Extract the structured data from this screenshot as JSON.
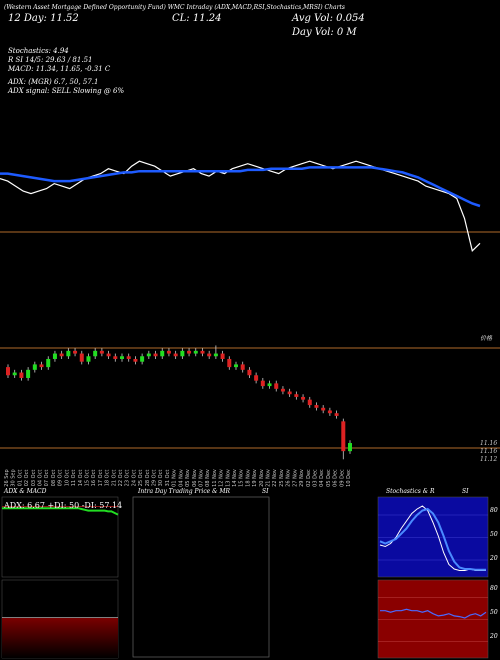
{
  "header": {
    "line1_left": "(Western Asset Mortgage Defined Opportunity Fund) WMC Intraday (ADX,MACD,RSI,Stochastics,MRSI) Charts",
    "price_left": "12 Day: 11.52",
    "price_center": "CL: 11.24",
    "avg_vol": "Avg Vol: 0.054",
    "day_vol": "Day Vol: 0 M",
    "col1": "(Western Asset Mortgage Defined Opportunity Fund) WMC",
    "stochastics": "Stochastics: 4.94",
    "rsi": "R SI 14/5: 29.63 / 81.51",
    "macd": "MACD: 11.34, 11.65, -0.31 C",
    "adx": "ADX: (MGR) 6.7, 50, 57.1",
    "adx_signal": "ADX signal: SELL Slowing @ 6%"
  },
  "price_axis": {
    "label_top": "价格",
    "label_1": "11.16",
    "label_2": "11.16",
    "label_3": "11.12"
  },
  "chart_data": [
    {
      "type": "line",
      "name": "price-panel",
      "series": [
        {
          "name": "price",
          "color": "#ffffff",
          "values": [
            11.82,
            11.8,
            11.76,
            11.72,
            11.7,
            11.72,
            11.74,
            11.78,
            11.76,
            11.74,
            11.78,
            11.82,
            11.84,
            11.86,
            11.9,
            11.88,
            11.86,
            11.92,
            11.96,
            11.94,
            11.92,
            11.88,
            11.84,
            11.86,
            11.88,
            11.9,
            11.86,
            11.84,
            11.88,
            11.86,
            11.9,
            11.92,
            11.94,
            11.92,
            11.9,
            11.88,
            11.86,
            11.9,
            11.92,
            11.94,
            11.96,
            11.94,
            11.92,
            11.9,
            11.92,
            11.94,
            11.96,
            11.94,
            11.92,
            11.9,
            11.88,
            11.86,
            11.84,
            11.82,
            11.8,
            11.76,
            11.74,
            11.72,
            11.7,
            11.66,
            11.5,
            11.24,
            11.3
          ]
        },
        {
          "name": "moving-average",
          "color": "#1e5bff",
          "values": [
            11.86,
            11.86,
            11.85,
            11.84,
            11.83,
            11.82,
            11.81,
            11.8,
            11.8,
            11.8,
            11.81,
            11.82,
            11.83,
            11.84,
            11.85,
            11.86,
            11.87,
            11.87,
            11.88,
            11.88,
            11.88,
            11.88,
            11.88,
            11.88,
            11.88,
            11.88,
            11.88,
            11.88,
            11.88,
            11.88,
            11.88,
            11.88,
            11.89,
            11.89,
            11.89,
            11.9,
            11.9,
            11.9,
            11.9,
            11.9,
            11.91,
            11.91,
            11.91,
            11.91,
            11.91,
            11.91,
            11.91,
            11.91,
            11.91,
            11.9,
            11.89,
            11.88,
            11.87,
            11.85,
            11.83,
            11.8,
            11.77,
            11.74,
            11.71,
            11.68,
            11.65,
            11.62,
            11.6
          ]
        }
      ]
    },
    {
      "type": "candlestick",
      "name": "candle-panel",
      "x_labels": [
        "26 Sep",
        "30 Sep",
        "01 Oct",
        "02 Oct",
        "03 Oct",
        "04 Oct",
        "07 Oct",
        "08 Oct",
        "09 Oct",
        "10 Oct",
        "11 Oct",
        "14 Oct",
        "15 Oct",
        "16 Oct",
        "17 Oct",
        "18 Oct",
        "21 Oct",
        "22 Oct",
        "23 Oct",
        "24 Oct",
        "25 Oct",
        "28 Oct",
        "29 Oct",
        "30 Oct",
        "31 Oct",
        "01 Nov",
        "04 Nov",
        "05 Nov",
        "06 Nov",
        "07 Nov",
        "08 Nov",
        "11 Nov",
        "12 Nov",
        "13 Nov",
        "14 Nov",
        "15 Nov",
        "18 Nov",
        "19 Nov",
        "20 Nov",
        "21 Nov",
        "22 Nov",
        "25 Nov",
        "26 Nov",
        "27 Nov",
        "29 Nov",
        "02 Dec",
        "03 Dec",
        "04 Dec",
        "05 Dec",
        "06 Dec",
        "09 Dec",
        "10 Dec"
      ],
      "candles": [
        {
          "o": 11.8,
          "c": 11.74,
          "h": 11.82,
          "l": 11.72
        },
        {
          "o": 11.74,
          "c": 11.76,
          "h": 11.78,
          "l": 11.72
        },
        {
          "o": 11.76,
          "c": 11.72,
          "h": 11.78,
          "l": 11.7
        },
        {
          "o": 11.72,
          "c": 11.78,
          "h": 11.8,
          "l": 11.7
        },
        {
          "o": 11.78,
          "c": 11.82,
          "h": 11.84,
          "l": 11.76
        },
        {
          "o": 11.82,
          "c": 11.8,
          "h": 11.84,
          "l": 11.78
        },
        {
          "o": 11.8,
          "c": 11.86,
          "h": 11.88,
          "l": 11.78
        },
        {
          "o": 11.86,
          "c": 11.9,
          "h": 11.92,
          "l": 11.84
        },
        {
          "o": 11.9,
          "c": 11.88,
          "h": 11.92,
          "l": 11.86
        },
        {
          "o": 11.88,
          "c": 11.92,
          "h": 11.94,
          "l": 11.86
        },
        {
          "o": 11.92,
          "c": 11.9,
          "h": 11.94,
          "l": 11.88
        },
        {
          "o": 11.9,
          "c": 11.84,
          "h": 11.92,
          "l": 11.82
        },
        {
          "o": 11.84,
          "c": 11.88,
          "h": 11.9,
          "l": 11.82
        },
        {
          "o": 11.88,
          "c": 11.92,
          "h": 11.94,
          "l": 11.86
        },
        {
          "o": 11.92,
          "c": 11.9,
          "h": 11.94,
          "l": 11.88
        },
        {
          "o": 11.9,
          "c": 11.88,
          "h": 11.92,
          "l": 11.86
        },
        {
          "o": 11.88,
          "c": 11.86,
          "h": 11.9,
          "l": 11.84
        },
        {
          "o": 11.86,
          "c": 11.88,
          "h": 11.9,
          "l": 11.84
        },
        {
          "o": 11.88,
          "c": 11.86,
          "h": 11.9,
          "l": 11.84
        },
        {
          "o": 11.86,
          "c": 11.84,
          "h": 11.88,
          "l": 11.82
        },
        {
          "o": 11.84,
          "c": 11.88,
          "h": 11.9,
          "l": 11.82
        },
        {
          "o": 11.88,
          "c": 11.9,
          "h": 11.92,
          "l": 11.86
        },
        {
          "o": 11.9,
          "c": 11.88,
          "h": 11.92,
          "l": 11.86
        },
        {
          "o": 11.88,
          "c": 11.92,
          "h": 11.94,
          "l": 11.86
        },
        {
          "o": 11.92,
          "c": 11.9,
          "h": 11.94,
          "l": 11.88
        },
        {
          "o": 11.9,
          "c": 11.88,
          "h": 11.92,
          "l": 11.86
        },
        {
          "o": 11.88,
          "c": 11.92,
          "h": 11.94,
          "l": 11.86
        },
        {
          "o": 11.92,
          "c": 11.9,
          "h": 11.94,
          "l": 11.88
        },
        {
          "o": 11.9,
          "c": 11.92,
          "h": 11.94,
          "l": 11.88
        },
        {
          "o": 11.92,
          "c": 11.9,
          "h": 11.94,
          "l": 11.88
        },
        {
          "o": 11.9,
          "c": 11.88,
          "h": 11.92,
          "l": 11.86
        },
        {
          "o": 11.88,
          "c": 11.9,
          "h": 11.96,
          "l": 11.86
        },
        {
          "o": 11.9,
          "c": 11.86,
          "h": 11.92,
          "l": 11.84
        },
        {
          "o": 11.86,
          "c": 11.8,
          "h": 11.88,
          "l": 11.78
        },
        {
          "o": 11.8,
          "c": 11.82,
          "h": 11.84,
          "l": 11.78
        },
        {
          "o": 11.82,
          "c": 11.78,
          "h": 11.84,
          "l": 11.76
        },
        {
          "o": 11.78,
          "c": 11.74,
          "h": 11.8,
          "l": 11.72
        },
        {
          "o": 11.74,
          "c": 11.7,
          "h": 11.76,
          "l": 11.68
        },
        {
          "o": 11.7,
          "c": 11.66,
          "h": 11.72,
          "l": 11.64
        },
        {
          "o": 11.66,
          "c": 11.68,
          "h": 11.7,
          "l": 11.64
        },
        {
          "o": 11.68,
          "c": 11.64,
          "h": 11.7,
          "l": 11.62
        },
        {
          "o": 11.64,
          "c": 11.62,
          "h": 11.66,
          "l": 11.6
        },
        {
          "o": 11.62,
          "c": 11.6,
          "h": 11.64,
          "l": 11.58
        },
        {
          "o": 11.6,
          "c": 11.58,
          "h": 11.62,
          "l": 11.56
        },
        {
          "o": 11.58,
          "c": 11.56,
          "h": 11.6,
          "l": 11.54
        },
        {
          "o": 11.56,
          "c": 11.52,
          "h": 11.58,
          "l": 11.5
        },
        {
          "o": 11.52,
          "c": 11.5,
          "h": 11.54,
          "l": 11.48
        },
        {
          "o": 11.5,
          "c": 11.48,
          "h": 11.52,
          "l": 11.46
        },
        {
          "o": 11.48,
          "c": 11.46,
          "h": 11.5,
          "l": 11.44
        },
        {
          "o": 11.46,
          "c": 11.44,
          "h": 11.48,
          "l": 11.42
        },
        {
          "o": 11.4,
          "c": 11.18,
          "h": 11.42,
          "l": 11.12
        },
        {
          "o": 11.18,
          "c": 11.24,
          "h": 11.26,
          "l": 11.16
        }
      ],
      "ylim": [
        11.1,
        12.0
      ]
    },
    {
      "type": "line",
      "name": "adx-panel",
      "title": "ADX & MACD",
      "readout": "ADX: 6.67 +DI: 50 -DI: 57.14",
      "series": [
        {
          "name": "green",
          "color": "#22dd22",
          "values": [
            0.86,
            0.86,
            0.86,
            0.86,
            0.86,
            0.86,
            0.86,
            0.86,
            0.86,
            0.86,
            0.86,
            0.86,
            0.86,
            0.86,
            0.86,
            0.86,
            0.86,
            0.86,
            0.86,
            0.86,
            0.86,
            0.86,
            0.86,
            0.86,
            0.85,
            0.84,
            0.83,
            0.83,
            0.83,
            0.83,
            0.83,
            0.83,
            0.82,
            0.82,
            0.8,
            0.78
          ]
        },
        {
          "name": "red",
          "color": "#dd2222",
          "values": [
            0.88,
            0.88,
            0.88,
            0.88,
            0.88,
            0.88,
            0.88,
            0.88,
            0.88,
            0.88,
            0.88,
            0.88,
            0.88,
            0.88,
            0.88,
            0.88,
            0.88,
            0.88,
            0.88,
            0.88,
            0.88,
            0.88,
            0.88,
            0.88,
            0.88,
            0.88,
            0.88,
            0.88,
            0.88,
            0.88,
            0.88,
            0.88,
            0.88,
            0.88,
            0.88,
            0.88
          ]
        }
      ]
    },
    {
      "type": "line",
      "name": "stoch-panel",
      "title": "Stochastics & R",
      "title_right": "SI",
      "levels": [
        "80",
        "50",
        "20"
      ],
      "series": [
        {
          "name": "k",
          "color": "#ffffff",
          "values": [
            0.4,
            0.38,
            0.42,
            0.5,
            0.62,
            0.72,
            0.82,
            0.88,
            0.92,
            0.86,
            0.7,
            0.52,
            0.3,
            0.14,
            0.08,
            0.06,
            0.06,
            0.08,
            0.06,
            0.06,
            0.06
          ]
        },
        {
          "name": "d",
          "color": "#1e5bff",
          "values": [
            0.45,
            0.42,
            0.45,
            0.48,
            0.55,
            0.62,
            0.72,
            0.8,
            0.86,
            0.88,
            0.82,
            0.7,
            0.52,
            0.32,
            0.18,
            0.1,
            0.08,
            0.08,
            0.07,
            0.07,
            0.07
          ]
        }
      ]
    },
    {
      "type": "line",
      "name": "mrsi-panel",
      "levels": [
        "80",
        "50",
        "20"
      ],
      "values": [
        0.62,
        0.62,
        0.6,
        0.62,
        0.62,
        0.64,
        0.62,
        0.62,
        0.6,
        0.62,
        0.58,
        0.55,
        0.56,
        0.58,
        0.55,
        0.54,
        0.52,
        0.56,
        0.58,
        0.55,
        0.6
      ]
    },
    {
      "type": "box",
      "name": "intraday-panel",
      "title": "Intra Day Trading Price & MR",
      "title_right": "SI"
    }
  ]
}
